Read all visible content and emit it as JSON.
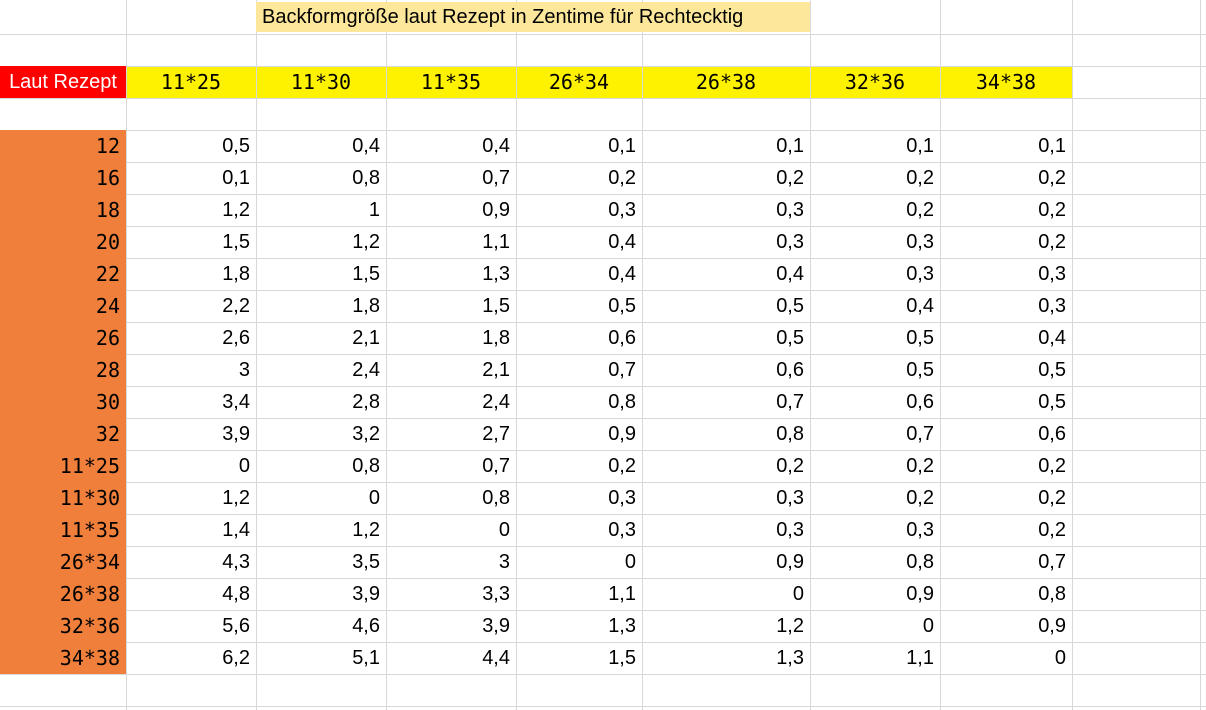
{
  "title": "Backformgröße laut Rezept in Zentime für Rechtecktig",
  "header_label": "Laut Rezept",
  "columns": [
    "11*25",
    "11*30",
    "11*35",
    "26*34",
    "26*38",
    "32*36",
    "34*38"
  ],
  "rows": [
    {
      "label": "12",
      "values": [
        "0,5",
        "0,4",
        "0,4",
        "0,1",
        "0,1",
        "0,1",
        "0,1"
      ]
    },
    {
      "label": "16",
      "values": [
        "0,1",
        "0,8",
        "0,7",
        "0,2",
        "0,2",
        "0,2",
        "0,2"
      ]
    },
    {
      "label": "18",
      "values": [
        "1,2",
        "1",
        "0,9",
        "0,3",
        "0,3",
        "0,2",
        "0,2"
      ]
    },
    {
      "label": "20",
      "values": [
        "1,5",
        "1,2",
        "1,1",
        "0,4",
        "0,3",
        "0,3",
        "0,2"
      ]
    },
    {
      "label": "22",
      "values": [
        "1,8",
        "1,5",
        "1,3",
        "0,4",
        "0,4",
        "0,3",
        "0,3"
      ]
    },
    {
      "label": "24",
      "values": [
        "2,2",
        "1,8",
        "1,5",
        "0,5",
        "0,5",
        "0,4",
        "0,3"
      ]
    },
    {
      "label": "26",
      "values": [
        "2,6",
        "2,1",
        "1,8",
        "0,6",
        "0,5",
        "0,5",
        "0,4"
      ]
    },
    {
      "label": "28",
      "values": [
        "3",
        "2,4",
        "2,1",
        "0,7",
        "0,6",
        "0,5",
        "0,5"
      ]
    },
    {
      "label": "30",
      "values": [
        "3,4",
        "2,8",
        "2,4",
        "0,8",
        "0,7",
        "0,6",
        "0,5"
      ]
    },
    {
      "label": "32",
      "values": [
        "3,9",
        "3,2",
        "2,7",
        "0,9",
        "0,8",
        "0,7",
        "0,6"
      ]
    },
    {
      "label": "11*25",
      "values": [
        "0",
        "0,8",
        "0,7",
        "0,2",
        "0,2",
        "0,2",
        "0,2"
      ]
    },
    {
      "label": "11*30",
      "values": [
        "1,2",
        "0",
        "0,8",
        "0,3",
        "0,3",
        "0,2",
        "0,2"
      ]
    },
    {
      "label": "11*35",
      "values": [
        "1,4",
        "1,2",
        "0",
        "0,3",
        "0,3",
        "0,3",
        "0,2"
      ]
    },
    {
      "label": "26*34",
      "values": [
        "4,3",
        "3,5",
        "3",
        "0",
        "0,9",
        "0,8",
        "0,7"
      ]
    },
    {
      "label": "26*38",
      "values": [
        "4,8",
        "3,9",
        "3,3",
        "1,1",
        "0",
        "0,9",
        "0,8"
      ]
    },
    {
      "label": "32*36",
      "values": [
        "5,6",
        "4,6",
        "3,9",
        "1,3",
        "1,2",
        "0",
        "0,9"
      ]
    },
    {
      "label": "34*38",
      "values": [
        "6,2",
        "5,1",
        "4,4",
        "1,5",
        "1,3",
        "1,1",
        "0"
      ]
    }
  ],
  "colors": {
    "title_fill": "#fde79a",
    "header_label_fill": "#ff0000",
    "header_row_fill": "#fff200",
    "row_label_fill": "#ef7f3b",
    "gridline": "#d9d9d9"
  }
}
